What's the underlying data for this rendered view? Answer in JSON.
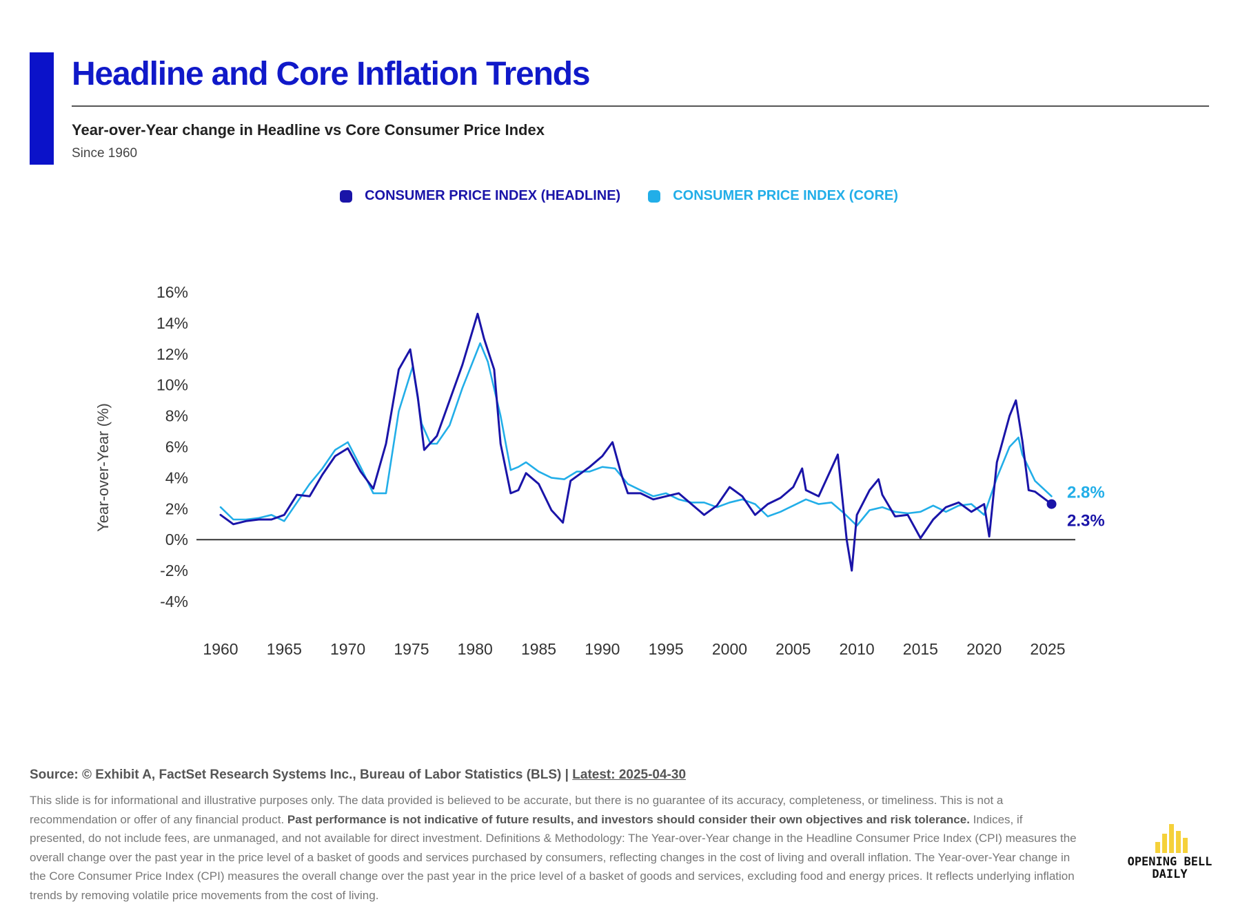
{
  "header": {
    "title": "Headline and Core Inflation Trends",
    "subtitle": "Year-over-Year change in Headline vs Core Consumer Price Index",
    "since": "Since 1960"
  },
  "legend": {
    "headline_label": "CONSUMER PRICE INDEX (HEADLINE)",
    "core_label": "CONSUMER PRICE INDEX (CORE)"
  },
  "colors": {
    "brand_blue": "#1019c9",
    "headline": "#1a14a8",
    "core": "#22aee8",
    "logo_yellow": "#f5d13a"
  },
  "chart_data": {
    "type": "line",
    "ylabel": "Year-over-Year (%)",
    "xlabel": "",
    "ylim": [
      -4,
      16
    ],
    "yticks": [
      -4,
      -2,
      0,
      2,
      4,
      6,
      8,
      10,
      12,
      14,
      16
    ],
    "ytick_labels": [
      "-4%",
      "-2%",
      "0%",
      "2%",
      "4%",
      "6%",
      "8%",
      "10%",
      "12%",
      "14%",
      "16%"
    ],
    "xlim": [
      1960,
      2027.5
    ],
    "xticks": [
      1960,
      1965,
      1970,
      1975,
      1980,
      1985,
      1990,
      1995,
      2000,
      2005,
      2010,
      2015,
      2020,
      2025
    ],
    "grid": false,
    "legend_position": "top-center",
    "series": [
      {
        "name": "CONSUMER PRICE INDEX (HEADLINE)",
        "color": "#1a14a8",
        "last_label": "2.3%",
        "last_value": 2.3,
        "x": [
          1960,
          1961,
          1962,
          1963,
          1964,
          1965,
          1966,
          1967,
          1968,
          1969,
          1970,
          1971,
          1972,
          1973,
          1974,
          1974.9,
          1975.5,
          1976,
          1977,
          1978,
          1979,
          1980.2,
          1980.7,
          1981.5,
          1982,
          1982.8,
          1983.4,
          1984,
          1985,
          1986,
          1986.9,
          1987.5,
          1988,
          1989,
          1990,
          1990.8,
          1991.5,
          1992,
          1993,
          1994,
          1995,
          1996,
          1997,
          1998,
          1999,
          2000,
          2001,
          2002,
          2003,
          2004,
          2005,
          2005.7,
          2006,
          2007,
          2008.5,
          2009.2,
          2009.6,
          2010,
          2011,
          2011.7,
          2012,
          2013,
          2014,
          2015,
          2016,
          2017,
          2018,
          2019,
          2020,
          2020.4,
          2021,
          2022,
          2022.5,
          2023,
          2023.5,
          2024,
          2025.3
        ],
        "y": [
          1.6,
          1.0,
          1.2,
          1.3,
          1.3,
          1.6,
          2.9,
          2.8,
          4.2,
          5.4,
          5.9,
          4.4,
          3.3,
          6.2,
          11.0,
          12.3,
          9.2,
          5.8,
          6.7,
          9.0,
          11.3,
          14.6,
          13.0,
          11.0,
          6.2,
          3.0,
          3.2,
          4.3,
          3.6,
          1.9,
          1.1,
          3.8,
          4.1,
          4.7,
          5.4,
          6.3,
          4.2,
          3.0,
          3.0,
          2.6,
          2.8,
          3.0,
          2.3,
          1.6,
          2.2,
          3.4,
          2.8,
          1.6,
          2.3,
          2.7,
          3.4,
          4.6,
          3.2,
          2.8,
          5.5,
          0.0,
          -2.0,
          1.6,
          3.2,
          3.9,
          2.9,
          1.5,
          1.6,
          0.1,
          1.3,
          2.1,
          2.4,
          1.8,
          2.3,
          0.2,
          5.0,
          8.0,
          9.0,
          6.4,
          3.2,
          3.1,
          2.3
        ]
      },
      {
        "name": "CONSUMER PRICE INDEX (CORE)",
        "color": "#22aee8",
        "last_label": "2.8%",
        "last_value": 2.8,
        "x": [
          1960,
          1961,
          1962,
          1963,
          1964,
          1965,
          1966,
          1967,
          1968,
          1969,
          1970,
          1971,
          1972,
          1973,
          1974,
          1975.1,
          1975.8,
          1976.5,
          1977,
          1978,
          1979,
          1980.4,
          1981,
          1982,
          1982.8,
          1983.4,
          1984,
          1985,
          1986,
          1987,
          1988,
          1989,
          1990,
          1991,
          1992,
          1993,
          1994,
          1995,
          1996,
          1997,
          1998,
          1999,
          2000,
          2001,
          2002,
          2003,
          2004,
          2005,
          2006,
          2007,
          2008,
          2009,
          2010,
          2011,
          2012,
          2013,
          2014,
          2015,
          2016,
          2017,
          2018,
          2019,
          2020,
          2021,
          2022,
          2022.7,
          2023,
          2024,
          2025.3
        ],
        "y": [
          2.1,
          1.3,
          1.3,
          1.4,
          1.6,
          1.2,
          2.4,
          3.6,
          4.6,
          5.8,
          6.3,
          4.7,
          3.0,
          3.0,
          8.3,
          11.2,
          7.5,
          6.2,
          6.2,
          7.4,
          9.8,
          12.7,
          11.5,
          8.0,
          4.5,
          4.7,
          5.0,
          4.4,
          4.0,
          3.9,
          4.4,
          4.4,
          4.7,
          4.6,
          3.6,
          3.2,
          2.8,
          3.0,
          2.6,
          2.4,
          2.4,
          2.1,
          2.4,
          2.6,
          2.3,
          1.5,
          1.8,
          2.2,
          2.6,
          2.3,
          2.4,
          1.7,
          0.9,
          1.9,
          2.1,
          1.8,
          1.7,
          1.8,
          2.2,
          1.8,
          2.2,
          2.3,
          1.6,
          4.0,
          6.0,
          6.6,
          5.5,
          3.8,
          2.8
        ]
      }
    ]
  },
  "footer": {
    "source_prefix": "Source: © Exhibit A, FactSet Research Systems Inc., Bureau of Labor Statistics (BLS) | ",
    "latest": "Latest: 2025-04-30",
    "disclaimer_1": "This slide is for informational and illustrative purposes only. The data provided is believed to be accurate, but there is no guarantee of its accuracy, completeness, or timeliness. This is not a recommendation or offer of any financial product. ",
    "disclaimer_bold": "Past performance is not indicative of future results, and investors should consider their own objectives and risk tolerance.",
    "disclaimer_2": " Indices, if presented, do not include fees, are unmanaged, and not available for direct investment. Definitions & Methodology: The Year-over-Year change in the Headline Consumer Price Index (CPI) measures the overall change over the past year in the price level of a basket of goods and services purchased by consumers, reflecting changes in the cost of living and overall inflation. The Year-over-Year change in the Core Consumer Price Index (CPI) measures the overall change over the past year in the price level of a basket of goods and services, excluding food and energy prices. It reflects underlying inflation trends by removing volatile price movements from the cost of living."
  },
  "logo": {
    "line1": "OPENING BELL",
    "line2": "DAILY",
    "icon": "bar-chart-logo-icon"
  }
}
